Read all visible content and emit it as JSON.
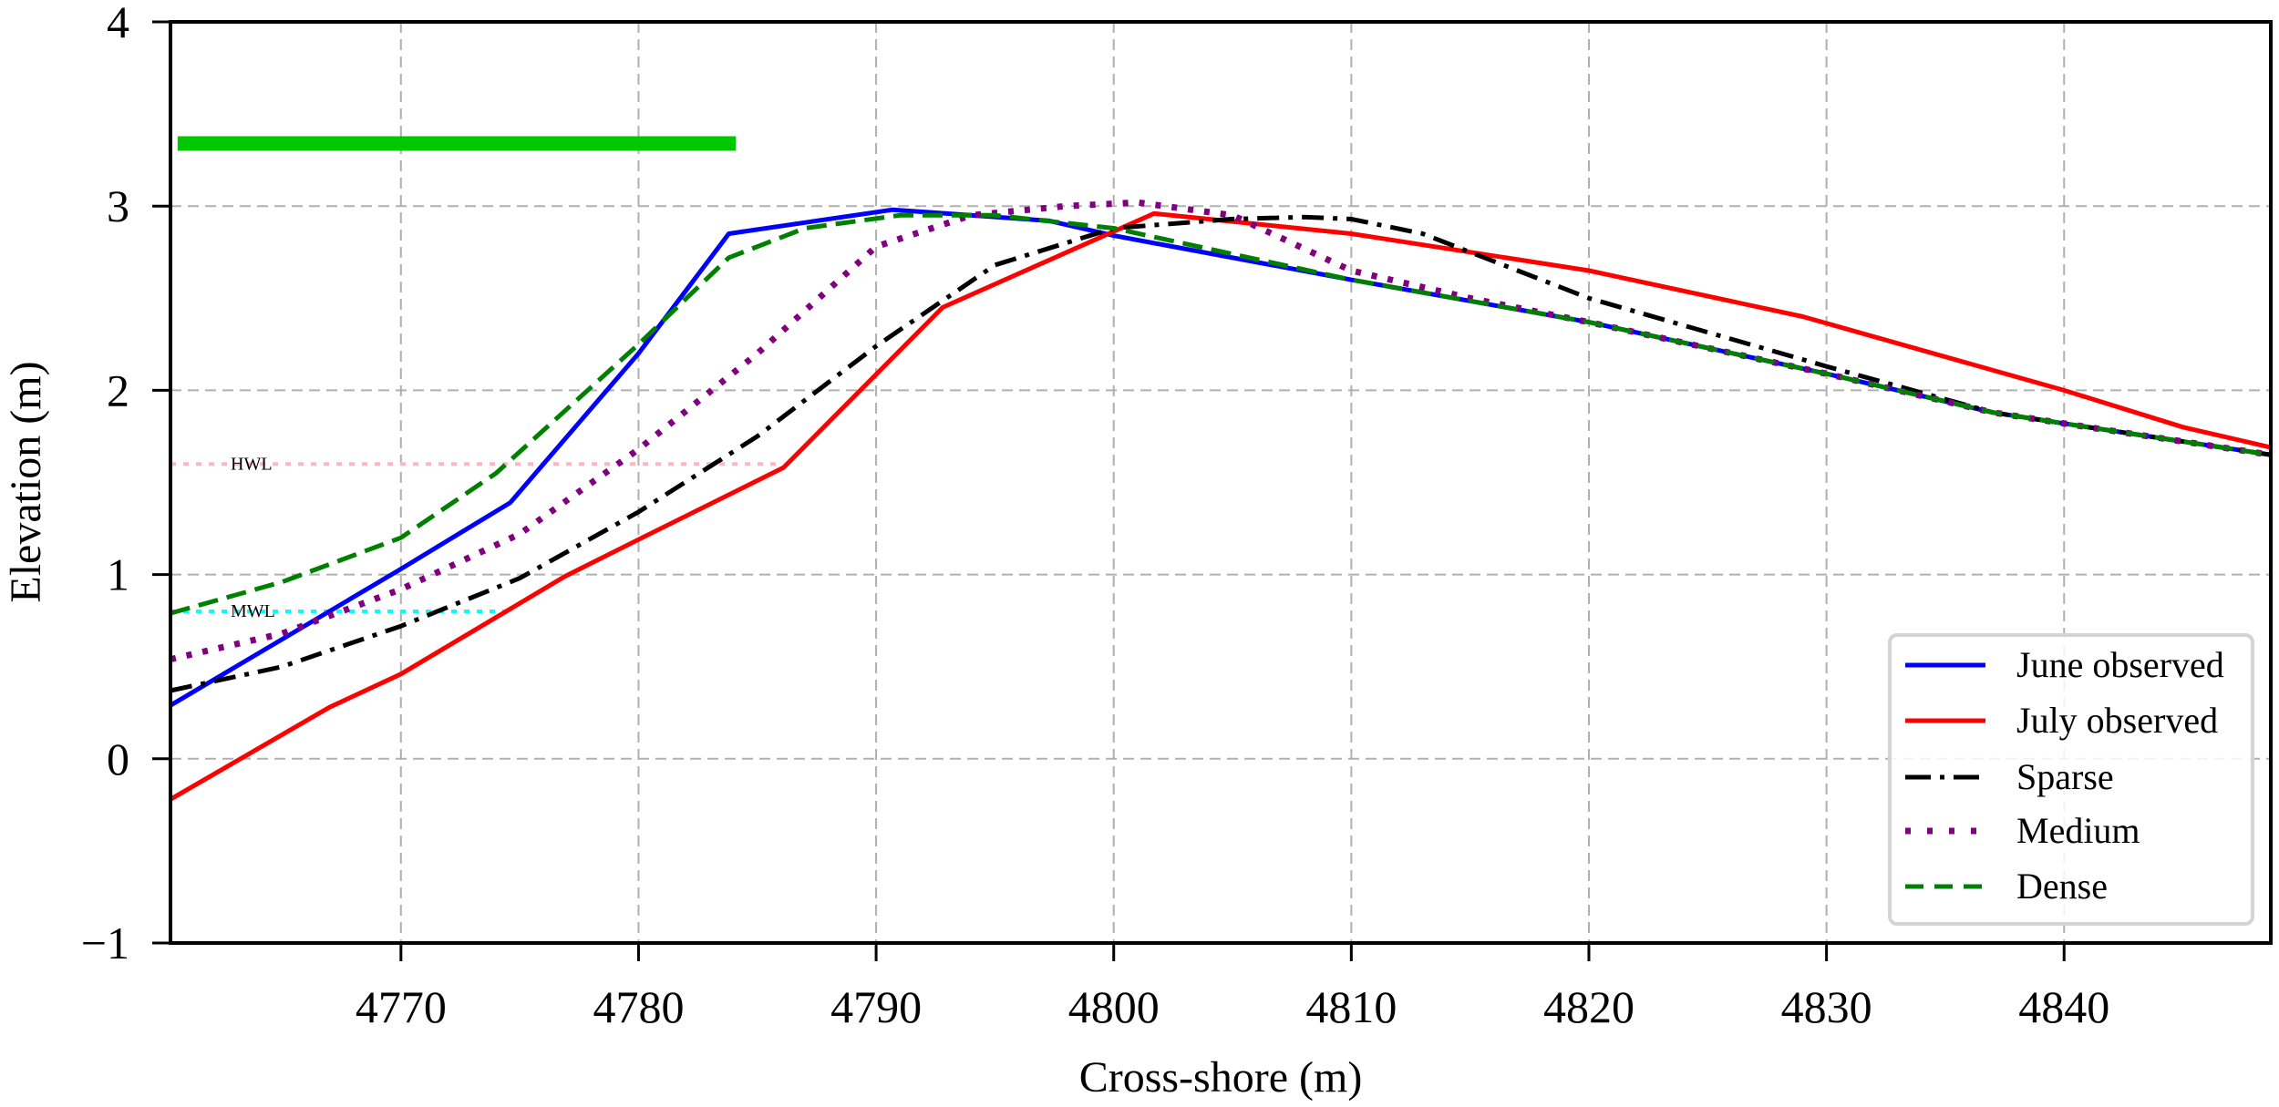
{
  "chart_data": {
    "type": "line",
    "title": "",
    "xlabel": "Cross-shore (m)",
    "ylabel": "Elevation (m)",
    "xlim": [
      4760.3,
      4848.7
    ],
    "ylim": [
      -1,
      4
    ],
    "grid": true,
    "legend_position": "lower right",
    "x_ticks": [
      4770,
      4780,
      4790,
      4800,
      4810,
      4820,
      4830,
      4840
    ],
    "x_tick_labels": [
      "4770",
      "4780",
      "4790",
      "4800",
      "4810",
      "4820",
      "4830",
      "4840"
    ],
    "y_ticks": [
      -1,
      0,
      1,
      2,
      3,
      4
    ],
    "y_tick_labels": [
      "−1",
      "0",
      "1",
      "2",
      "3",
      "4"
    ],
    "series": [
      {
        "name": "June observed",
        "color": "#0000ff",
        "style": "solid",
        "x": [
          4760.3,
          4770,
          4774.6,
          4780,
          4783.8,
          4790.7,
          4797.3,
          4800,
          4810,
          4820,
          4830,
          4837,
          4840,
          4848.7
        ],
        "y": [
          0.29,
          1.03,
          1.39,
          2.2,
          2.85,
          2.98,
          2.92,
          2.84,
          2.6,
          2.37,
          2.09,
          1.88,
          1.82,
          1.65
        ]
      },
      {
        "name": "July observed",
        "color": "#ff0000",
        "style": "solid",
        "x": [
          4760.3,
          4767,
          4770,
          4776.9,
          4780,
          4786.1,
          4792.8,
          4801.7,
          4810,
          4820,
          4829,
          4840,
          4845,
          4848.7
        ],
        "y": [
          -0.22,
          0.28,
          0.46,
          0.99,
          1.19,
          1.58,
          2.45,
          2.96,
          2.85,
          2.65,
          2.4,
          2.0,
          1.8,
          1.69
        ]
      },
      {
        "name": "Sparse",
        "color": "#000000",
        "style": "dashdot",
        "x": [
          4760.3,
          4765,
          4770,
          4775,
          4780,
          4785,
          4790,
          4795,
          4800,
          4805,
          4808,
          4810,
          4813,
          4820,
          4830,
          4837,
          4840,
          4848.7
        ],
        "y": [
          0.37,
          0.5,
          0.72,
          0.98,
          1.34,
          1.75,
          2.24,
          2.68,
          2.88,
          2.93,
          2.94,
          2.93,
          2.85,
          2.5,
          2.13,
          1.88,
          1.82,
          1.65
        ]
      },
      {
        "name": "Medium",
        "color": "#800080",
        "style": "dotted",
        "x": [
          4760.3,
          4765,
          4770,
          4775,
          4780,
          4785,
          4790,
          4794,
          4798,
          4801,
          4805,
          4810,
          4815,
          4820,
          4830,
          4837,
          4840,
          4848.7
        ],
        "y": [
          0.54,
          0.68,
          0.92,
          1.22,
          1.68,
          2.2,
          2.78,
          2.95,
          3.0,
          3.02,
          2.95,
          2.65,
          2.5,
          2.37,
          2.09,
          1.88,
          1.82,
          1.65
        ]
      },
      {
        "name": "Dense",
        "color": "#008000",
        "style": "dashed",
        "x": [
          4760.3,
          4765,
          4770,
          4774,
          4780,
          4783.8,
          4787,
          4791,
          4795,
          4800,
          4810,
          4820,
          4830,
          4837,
          4840,
          4848.7
        ],
        "y": [
          0.79,
          0.96,
          1.2,
          1.55,
          2.25,
          2.72,
          2.88,
          2.95,
          2.95,
          2.88,
          2.6,
          2.37,
          2.09,
          1.88,
          1.82,
          1.65
        ]
      }
    ],
    "annotations": [
      {
        "label": "HWL",
        "y": 1.6,
        "x_start": 4760.3,
        "x_end": 4785.8,
        "color": "#ffb6c1",
        "style": "dotted"
      },
      {
        "label": "MWL",
        "y": 0.8,
        "x_start": 4760.3,
        "x_end": 4774.6,
        "color": "#00ffff",
        "style": "dotted"
      }
    ],
    "bar_marker": {
      "y": 3.34,
      "x_start": 4760.6,
      "x_end": 4784.1,
      "color": "#00c800"
    }
  }
}
